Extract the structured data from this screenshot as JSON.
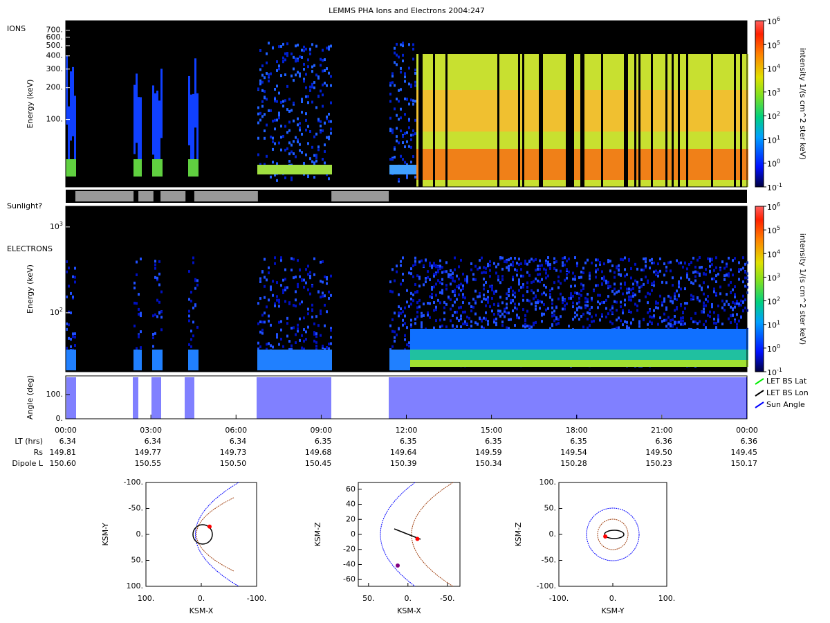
{
  "title": "LEMMS PHA Ions and Electrons  2004:247",
  "chart_data": [
    {
      "type": "spectrogram",
      "label": "IONS",
      "ylabel": "Energy (keV)",
      "yscale": "log",
      "ylim": [
        23,
        860
      ],
      "yticks": [
        {
          "value": 100,
          "label": "100."
        },
        {
          "value": 200,
          "label": "200."
        },
        {
          "value": 300,
          "label": "300."
        },
        {
          "value": 400,
          "label": "400."
        },
        {
          "value": 500,
          "label": "500."
        },
        {
          "value": 600,
          "label": "600."
        },
        {
          "value": 700,
          "label": "700."
        }
      ],
      "colorbar": {
        "label": "intensity 1/(s cm^2 ster keV)",
        "clim": [
          0.1,
          1000000
        ],
        "cticks": [
          {
            "value": 0.1,
            "label": "10",
            "sup": "-1"
          },
          {
            "value": 1,
            "label": "10",
            "sup": "0"
          },
          {
            "value": 10,
            "label": "10",
            "sup": "1"
          },
          {
            "value": 100,
            "label": "10",
            "sup": "2"
          },
          {
            "value": 1000,
            "label": "10",
            "sup": "3"
          },
          {
            "value": 10000,
            "label": "10",
            "sup": "4"
          },
          {
            "value": 100000,
            "label": "10",
            "sup": "5"
          },
          {
            "value": 1000000,
            "label": "10",
            "sup": "6"
          }
        ]
      }
    },
    {
      "type": "intervals",
      "label": "Sunlight?",
      "color": "#999999",
      "intervals": [
        [
          0.34,
          2.39
        ],
        [
          2.56,
          3.09
        ],
        [
          3.34,
          4.22
        ],
        [
          4.53,
          6.77
        ],
        [
          9.36,
          11.38
        ]
      ]
    },
    {
      "type": "spectrogram",
      "label": "ELECTRONS",
      "ylabel": "Energy (keV)",
      "yscale": "log",
      "ylim": [
        20.6,
        1740
      ],
      "yticks": [
        {
          "value": 100,
          "label": "10",
          "sup": "2"
        },
        {
          "value": 1000,
          "label": "10",
          "sup": "3"
        }
      ],
      "colorbar": {
        "label": "intensity 1/(s cm^2 ster keV)",
        "clim": [
          0.1,
          1000000
        ],
        "cticks": [
          {
            "value": 0.1,
            "label": "10",
            "sup": "-1"
          },
          {
            "value": 1,
            "label": "10",
            "sup": "0"
          },
          {
            "value": 10,
            "label": "10",
            "sup": "1"
          },
          {
            "value": 100,
            "label": "10",
            "sup": "2"
          },
          {
            "value": 1000,
            "label": "10",
            "sup": "3"
          },
          {
            "value": 10000,
            "label": "10",
            "sup": "4"
          },
          {
            "value": 100000,
            "label": "10",
            "sup": "5"
          },
          {
            "value": 1000000,
            "label": "10",
            "sup": "6"
          }
        ]
      }
    },
    {
      "type": "line",
      "ylabel": "Angle (deg)",
      "ylim": [
        0,
        177
      ],
      "yticks": [
        {
          "value": 0,
          "label": "0."
        },
        {
          "value": 100,
          "label": "100."
        }
      ],
      "series": [
        {
          "name": "LET BS Lat",
          "color": "#00ee00"
        },
        {
          "name": "LET BS Lon",
          "color": "#000000"
        },
        {
          "name": "Sun Angle",
          "color": "#0000ff"
        }
      ]
    },
    {
      "type": "ephemeris",
      "xlim": [
        0,
        24
      ],
      "xticks": [
        {
          "value": 0,
          "label": "00:00"
        },
        {
          "value": 3,
          "label": "03:00"
        },
        {
          "value": 6,
          "label": "06:00"
        },
        {
          "value": 9,
          "label": "09:00"
        },
        {
          "value": 12,
          "label": "12:00"
        },
        {
          "value": 15,
          "label": "15:00"
        },
        {
          "value": 18,
          "label": "18:00"
        },
        {
          "value": 21,
          "label": "21:00"
        },
        {
          "value": 24,
          "label": "00:00"
        }
      ],
      "rows": [
        {
          "name": "LT (hrs)",
          "values": [
            "6.34",
            "6.34",
            "6.34",
            "6.35",
            "6.35",
            "6.35",
            "6.35",
            "6.36",
            "6.36"
          ]
        },
        {
          "name": "Rs",
          "values": [
            "149.81",
            "149.77",
            "149.73",
            "149.68",
            "149.64",
            "149.59",
            "149.54",
            "149.50",
            "149.45"
          ]
        },
        {
          "name": "Dipole L",
          "values": [
            "150.60",
            "150.55",
            "150.50",
            "150.45",
            "150.39",
            "150.34",
            "150.28",
            "150.23",
            "150.17"
          ]
        }
      ]
    },
    {
      "type": "scatter",
      "xlabel": "KSM-X",
      "ylabel": "KSM-Y",
      "xlim": [
        100,
        -100
      ],
      "ylim": [
        100,
        -100
      ],
      "xticks": [
        {
          "value": 100,
          "label": "100."
        },
        {
          "value": 0,
          "label": "0."
        },
        {
          "value": -100,
          "label": "-100."
        }
      ],
      "yticks": [
        {
          "value": -100,
          "label": "-100."
        },
        {
          "value": -50,
          "label": "-50."
        },
        {
          "value": 0,
          "label": "0."
        },
        {
          "value": 50,
          "label": "50."
        },
        {
          "value": 100,
          "label": "100."
        }
      ],
      "color": "#ff0000",
      "x": [
        -15
      ],
      "values": [
        -15
      ]
    },
    {
      "type": "scatter",
      "xlabel": "KSM-X",
      "ylabel": "KSM-Z",
      "xlim": [
        63,
        -66
      ],
      "ylim": [
        -69,
        69
      ],
      "xticks": [
        {
          "value": 50,
          "label": "50."
        },
        {
          "value": 0,
          "label": "0."
        },
        {
          "value": -50,
          "label": "-50."
        }
      ],
      "yticks": [
        60,
        40,
        20,
        0,
        -20,
        -40,
        -60
      ],
      "color": "#ff0000",
      "x": [
        -12
      ],
      "values": [
        -6
      ]
    },
    {
      "type": "scatter",
      "xlabel": "KSM-Y",
      "ylabel": "KSM-Z",
      "xlim": [
        -100,
        100
      ],
      "ylim": [
        -100,
        100
      ],
      "xticks": [
        {
          "value": -100,
          "label": "-100."
        },
        {
          "value": 0,
          "label": "0."
        },
        {
          "value": 100,
          "label": "100."
        }
      ],
      "yticks": [
        {
          "value": 100,
          "label": "100."
        },
        {
          "value": 50,
          "label": "50."
        },
        {
          "value": 0,
          "label": "0."
        },
        {
          "value": -50,
          "label": "-50."
        },
        {
          "value": -100,
          "label": "-100."
        }
      ],
      "color": "#ff0000",
      "x": [
        -14
      ],
      "values": [
        -4
      ]
    }
  ]
}
